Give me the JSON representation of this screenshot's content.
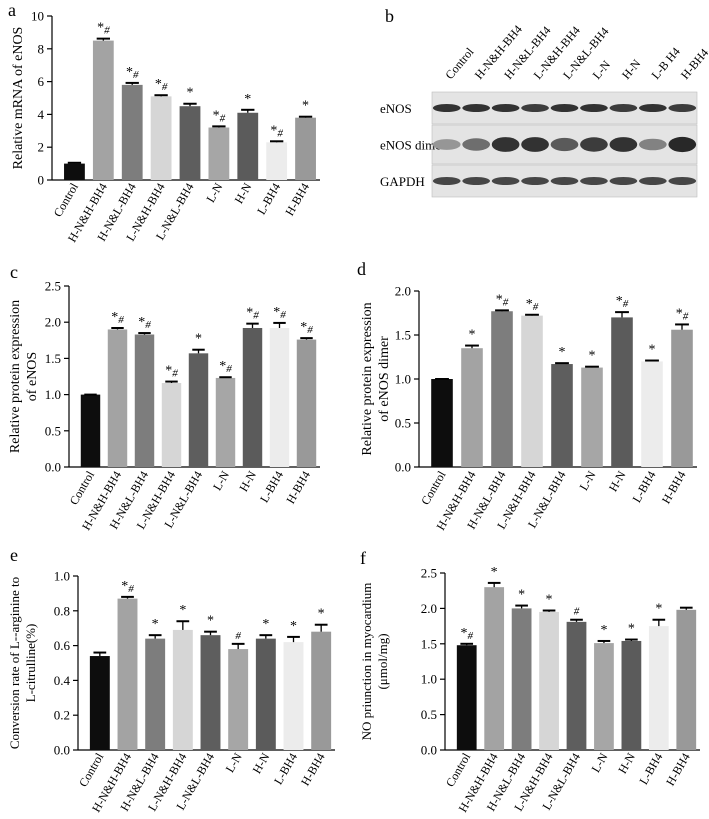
{
  "figure_title": "Multi-panel figure: eNOS expression, dimer, L-arginine conversion and NO production",
  "categories": [
    "Control",
    "H-N&H-BH4",
    "H-N&L-BH4",
    "L-N&H-BH4",
    "L-N&L-BH4",
    "L-N",
    "H-N",
    "L-BH4",
    "H-BH4"
  ],
  "bar_colors": [
    "#0d0d0d",
    "#a3a3a3",
    "#7d7d7d",
    "#d6d6d6",
    "#5e5e5e",
    "#a6a6a6",
    "#5b5b5b",
    "#ececec",
    "#999999"
  ],
  "chart_data": [
    {
      "panel": "a",
      "type": "bar",
      "ylabel": "Relative mRNA of eNOS",
      "ylim": [
        0,
        10
      ],
      "yticks": [
        0,
        2,
        4,
        6,
        8,
        10
      ],
      "values": [
        1.0,
        8.5,
        5.8,
        5.1,
        4.5,
        3.2,
        4.1,
        2.3,
        3.8
      ],
      "errors": [
        0.05,
        0.12,
        0.12,
        0.07,
        0.15,
        0.07,
        0.18,
        0.06,
        0.06
      ],
      "marks": [
        "",
        "*#",
        "*#",
        "*#",
        "*",
        "*#",
        "*",
        "*#",
        "*"
      ]
    },
    {
      "panel": "c",
      "type": "bar",
      "ylabel": "Relative protein expression of eNOS",
      "ylim": [
        0,
        2.5
      ],
      "yticks": [
        0,
        0.5,
        1.0,
        1.5,
        2.0,
        2.5
      ],
      "values": [
        1.0,
        1.9,
        1.83,
        1.16,
        1.57,
        1.23,
        1.92,
        1.92,
        1.76
      ],
      "errors": [
        0.0,
        0.02,
        0.02,
        0.02,
        0.05,
        0.01,
        0.06,
        0.07,
        0.02
      ],
      "marks": [
        "",
        "*#",
        "*#",
        "*#",
        "*",
        "*#",
        "*#",
        "*#",
        "*#"
      ]
    },
    {
      "panel": "d",
      "type": "bar",
      "ylabel": "Relative protein expression of eNOS dimer",
      "ylim": [
        0,
        2.0
      ],
      "yticks": [
        0,
        0.5,
        1.0,
        1.5,
        2.0
      ],
      "values": [
        1.0,
        1.35,
        1.77,
        1.72,
        1.17,
        1.13,
        1.7,
        1.2,
        1.56
      ],
      "errors": [
        0.0,
        0.03,
        0.01,
        0.01,
        0.01,
        0.01,
        0.06,
        0.01,
        0.06
      ],
      "marks": [
        "",
        "*",
        "*#",
        "*#",
        "*",
        "*",
        "*#",
        "*",
        "*#"
      ]
    },
    {
      "panel": "e",
      "type": "bar",
      "ylabel": "Conversion rate of L--arginine to L-citrulline(%)",
      "ylim": [
        0,
        1.0
      ],
      "yticks": [
        0,
        0.2,
        0.4,
        0.6,
        0.8,
        1.0
      ],
      "values": [
        0.54,
        0.87,
        0.64,
        0.69,
        0.66,
        0.58,
        0.64,
        0.62,
        0.68
      ],
      "errors": [
        0.02,
        0.01,
        0.02,
        0.05,
        0.02,
        0.03,
        0.02,
        0.03,
        0.04
      ],
      "marks": [
        "",
        "*#",
        "*",
        "*",
        "*",
        "#",
        "*",
        "*",
        "*"
      ]
    },
    {
      "panel": "f",
      "type": "bar",
      "ylabel": "NO priunction in myocardium (μmol/mg)",
      "ylim": [
        0,
        2.5
      ],
      "yticks": [
        0,
        0.5,
        1.0,
        1.5,
        2.0,
        2.5
      ],
      "values": [
        1.48,
        2.3,
        2.0,
        1.95,
        1.81,
        1.51,
        1.54,
        1.75,
        1.98
      ],
      "errors": [
        0.02,
        0.06,
        0.04,
        0.02,
        0.03,
        0.03,
        0.02,
        0.09,
        0.03
      ],
      "marks": [
        "*#",
        "*",
        "*",
        "*",
        "#",
        "*",
        "*",
        "*",
        ""
      ]
    }
  ],
  "panel_labels": {
    "a": "a",
    "b": "b",
    "c": "c",
    "d": "d",
    "e": "e",
    "f": "f"
  },
  "ylabel_lines": {
    "a": [
      "Relative mRNA of eNOS"
    ],
    "c": [
      "Relative protein expression",
      "of eNOS"
    ],
    "d": [
      "Relative protein expression",
      "of eNOS dimer"
    ],
    "e": [
      "Conversion rate of L--arginine to",
      "L-citrulline(%)"
    ],
    "f": [
      "NO priunction in myocardium",
      "(μmol/mg)"
    ]
  },
  "blot": {
    "lane_labels": [
      "Control",
      "H-N&H-BH4",
      "H-N&L-BH4",
      "L-N&H-BH4",
      "L-N&L-BH4",
      "L-N",
      "H-N",
      "L-B H4",
      "H-BH4"
    ],
    "rows": [
      {
        "label": "eNOS",
        "intensity": [
          0.85,
          0.85,
          0.85,
          0.8,
          0.85,
          0.85,
          0.8,
          0.85,
          0.8
        ]
      },
      {
        "label": "eNOS dimer",
        "intensity": [
          0.35,
          0.55,
          0.85,
          0.85,
          0.65,
          0.8,
          0.85,
          0.45,
          0.9
        ]
      },
      {
        "label": "GAPDH",
        "intensity": [
          0.75,
          0.75,
          0.75,
          0.75,
          0.75,
          0.75,
          0.75,
          0.75,
          0.75
        ]
      }
    ]
  }
}
